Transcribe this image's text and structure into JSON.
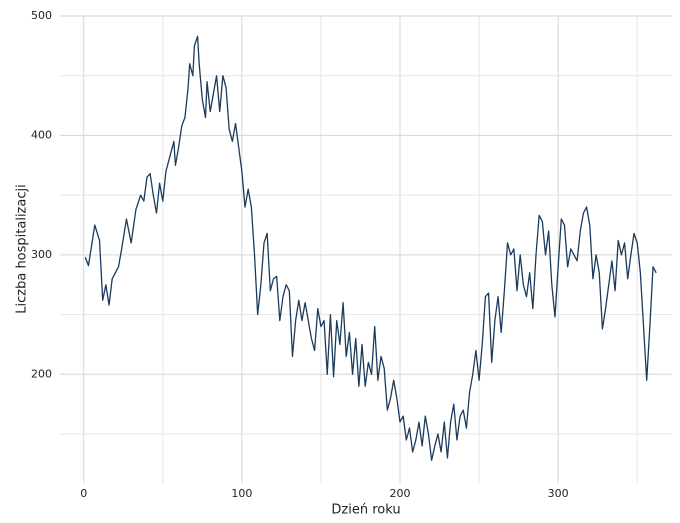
{
  "chart_data": {
    "type": "line",
    "xlabel": "Dzień roku",
    "ylabel": "Liczba hospitalizacji",
    "x": [
      1,
      3,
      7,
      10,
      12,
      14,
      16,
      18,
      22,
      24,
      27,
      30,
      33,
      36,
      38,
      40,
      42,
      44,
      46,
      48,
      50,
      52,
      55,
      57,
      58,
      60,
      62,
      64,
      66,
      67,
      69,
      70,
      72,
      73,
      75,
      77,
      78,
      80,
      82,
      84,
      86,
      88,
      90,
      92,
      94,
      96,
      98,
      100,
      102,
      104,
      106,
      108,
      110,
      112,
      114,
      116,
      118,
      120,
      122,
      124,
      126,
      128,
      130,
      132,
      134,
      136,
      138,
      140,
      142,
      144,
      146,
      148,
      150,
      152,
      154,
      156,
      158,
      160,
      162,
      164,
      166,
      168,
      170,
      172,
      174,
      176,
      178,
      180,
      182,
      184,
      186,
      188,
      190,
      192,
      194,
      196,
      198,
      200,
      202,
      204,
      206,
      208,
      210,
      212,
      214,
      216,
      218,
      220,
      222,
      224,
      226,
      228,
      230,
      232,
      234,
      236,
      238,
      240,
      242,
      244,
      246,
      248,
      250,
      252,
      254,
      256,
      258,
      260,
      262,
      264,
      266,
      268,
      270,
      272,
      274,
      276,
      278,
      280,
      282,
      284,
      286,
      288,
      290,
      292,
      294,
      296,
      298,
      300,
      302,
      304,
      306,
      308,
      310,
      312,
      314,
      316,
      318,
      320,
      322,
      324,
      326,
      328,
      330,
      332,
      334,
      336,
      338,
      340,
      342,
      344,
      346,
      348,
      350,
      352,
      354,
      356,
      358,
      360,
      362
    ],
    "series": [
      {
        "name": "Liczba hospitalizacji",
        "color": "#1b3a5c",
        "values": [
          298,
          291,
          325,
          312,
          262,
          275,
          258,
          280,
          290,
          305,
          330,
          310,
          338,
          350,
          345,
          365,
          368,
          350,
          335,
          360,
          345,
          370,
          385,
          395,
          375,
          390,
          408,
          415,
          440,
          460,
          450,
          475,
          483,
          460,
          430,
          415,
          445,
          420,
          435,
          450,
          420,
          450,
          440,
          405,
          395,
          410,
          390,
          370,
          340,
          355,
          340,
          300,
          250,
          275,
          310,
          318,
          270,
          280,
          282,
          245,
          265,
          275,
          270,
          215,
          245,
          262,
          245,
          260,
          245,
          230,
          220,
          255,
          240,
          245,
          200,
          250,
          198,
          245,
          225,
          260,
          215,
          235,
          200,
          230,
          190,
          225,
          190,
          210,
          200,
          240,
          195,
          215,
          205,
          170,
          180,
          195,
          180,
          160,
          165,
          145,
          155,
          135,
          145,
          160,
          140,
          165,
          150,
          128,
          140,
          150,
          135,
          160,
          130,
          160,
          175,
          145,
          165,
          170,
          155,
          185,
          200,
          220,
          195,
          225,
          265,
          268,
          210,
          245,
          265,
          235,
          270,
          310,
          300,
          305,
          270,
          300,
          275,
          265,
          285,
          255,
          300,
          333,
          328,
          300,
          320,
          275,
          248,
          290,
          330,
          325,
          290,
          305,
          300,
          295,
          320,
          335,
          340,
          325,
          280,
          300,
          285,
          238,
          255,
          275,
          295,
          270,
          312,
          300,
          310,
          280,
          300,
          318,
          310,
          285,
          240,
          195,
          240,
          290,
          285
        ]
      }
    ],
    "xlim": [
      -15,
      372
    ],
    "ylim": [
      109,
      500
    ],
    "xticks": [
      0,
      100,
      200,
      300
    ],
    "yticks": [
      200,
      300,
      400,
      500
    ],
    "x_minor_grid": [
      50,
      150,
      250,
      350
    ],
    "y_minor_grid": [
      150,
      250,
      350,
      450
    ],
    "grid": true
  }
}
